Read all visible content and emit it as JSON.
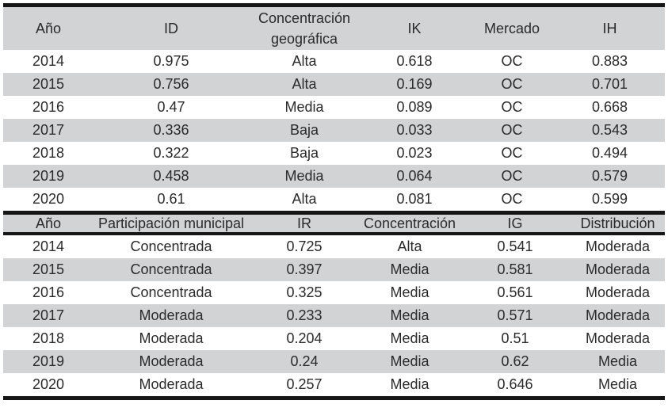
{
  "colors": {
    "header_bg": "#d2d3d5",
    "row_alt_bg": "#d2d3d5",
    "row_bg": "#ffffff",
    "border": "#161616",
    "text": "#2a2a2a",
    "page_bg": "#ffffff"
  },
  "tables": [
    {
      "name": "market-concentration-table",
      "headers": [
        "Año",
        "ID",
        "Concentración geográfica",
        "IK",
        "Mercado",
        "IH"
      ],
      "rows": [
        [
          "2014",
          "0.975",
          "Alta",
          "0.618",
          "OC",
          "0.883"
        ],
        [
          "2015",
          "0.756",
          "Alta",
          "0.169",
          "OC",
          "0.701"
        ],
        [
          "2016",
          "0.47",
          "Media",
          "0.089",
          "OC",
          "0.668"
        ],
        [
          "2017",
          "0.336",
          "Baja",
          "0.033",
          "OC",
          "0.543"
        ],
        [
          "2018",
          "0.322",
          "Baja",
          "0.023",
          "OC",
          "0.494"
        ],
        [
          "2019",
          "0.458",
          "Media",
          "0.064",
          "OC",
          "0.579"
        ],
        [
          "2020",
          "0.61",
          "Alta",
          "0.081",
          "OC",
          "0.599"
        ]
      ]
    },
    {
      "name": "municipal-participation-table",
      "headers": [
        "Año",
        "Participación municipal",
        "IR",
        "Concentración",
        "IG",
        "Distribución"
      ],
      "rows": [
        [
          "2014",
          "Concentrada",
          "0.725",
          "Alta",
          "0.541",
          "Moderada"
        ],
        [
          "2015",
          "Concentrada",
          "0.397",
          "Media",
          "0.581",
          "Moderada"
        ],
        [
          "2016",
          "Concentrada",
          "0.325",
          "Media",
          "0.561",
          "Moderada"
        ],
        [
          "2017",
          "Moderada",
          "0.233",
          "Media",
          "0.571",
          "Moderada"
        ],
        [
          "2018",
          "Moderada",
          "0.204",
          "Media",
          "0.51",
          "Moderada"
        ],
        [
          "2019",
          "Moderada",
          "0.24",
          "Media",
          "0.62",
          "Media"
        ],
        [
          "2020",
          "Moderada",
          "0.257",
          "Media",
          "0.646",
          "Media"
        ]
      ]
    }
  ]
}
